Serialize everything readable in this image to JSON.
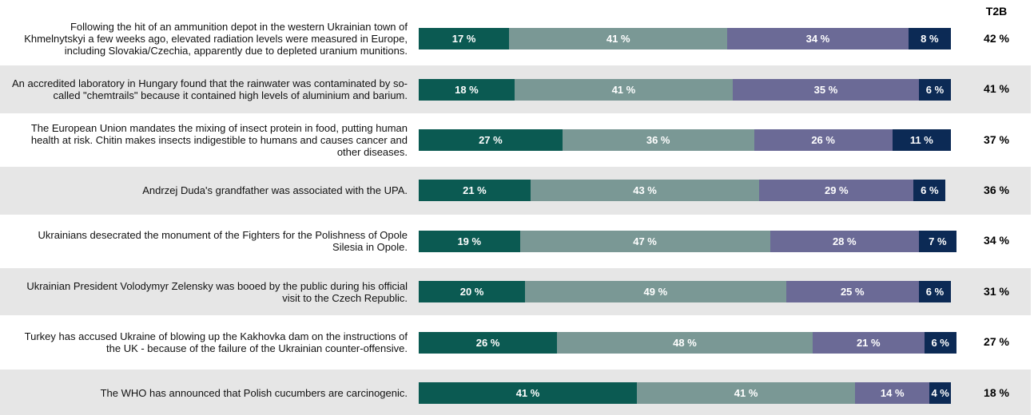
{
  "chart_data": {
    "type": "stacked-bar-horizontal",
    "header": "T2B",
    "categories": [
      "Following the hit of an ammunition depot in the western Ukrainian town of Khmelnytskyi a few weeks ago, elevated radiation levels were measured in Europe, including Slovakia/Czechia, apparently due to depleted uranium munitions.",
      "An accredited laboratory in Hungary found that the rainwater was contaminated by so-called \"chemtrails\" because it contained high levels of aluminium and barium.",
      "The European Union mandates the mixing of insect protein in food, putting human health at risk. Chitin makes insects indigestible to humans and causes cancer and other diseases.",
      "Andrzej Duda's grandfather was associated with the UPA.",
      "Ukrainians desecrated the monument of the Fighters for the Polishness of Opole Silesia in Opole.",
      "Ukrainian President Volodymyr Zelensky was booed by the public during his official visit to the Czech Republic.",
      "Turkey has accused Ukraine of blowing up the Kakhovka dam on the instructions of the UK - because of the failure of the Ukrainian counter-offensive.",
      "The WHO has announced that Polish cucumbers are carcinogenic."
    ],
    "xlim": [
      0,
      100
    ],
    "series": [
      {
        "color": "#0b5a52",
        "values": [
          17,
          18,
          27,
          21,
          19,
          20,
          26,
          41
        ],
        "value_labels": [
          "17 %",
          "18 %",
          "27 %",
          "21 %",
          "19 %",
          "20 %",
          "26 %",
          "41 %"
        ]
      },
      {
        "color": "#7a9895",
        "values": [
          41,
          41,
          36,
          43,
          47,
          49,
          48,
          41
        ],
        "value_labels": [
          "41 %",
          "41 %",
          "36 %",
          "43 %",
          "47 %",
          "49 %",
          "48 %",
          "41 %"
        ]
      },
      {
        "color": "#6b6a96",
        "values": [
          34,
          35,
          26,
          29,
          28,
          25,
          21,
          14
        ],
        "value_labels": [
          "34 %",
          "35 %",
          "26 %",
          "29 %",
          "28 %",
          "25 %",
          "21 %",
          "14 %"
        ]
      },
      {
        "color": "#0c2a55",
        "values": [
          8,
          6,
          11,
          6,
          7,
          6,
          6,
          4
        ],
        "value_labels": [
          "8 %",
          "6 %",
          "11 %",
          "6 %",
          "7 %",
          "6 %",
          "6 %",
          "4 %"
        ]
      }
    ],
    "t2b": {
      "values": [
        42,
        41,
        37,
        36,
        34,
        31,
        27,
        18
      ],
      "value_labels": [
        "42 %",
        "41 %",
        "37 %",
        "36 %",
        "34 %",
        "31 %",
        "27 %",
        "18 %"
      ]
    }
  }
}
